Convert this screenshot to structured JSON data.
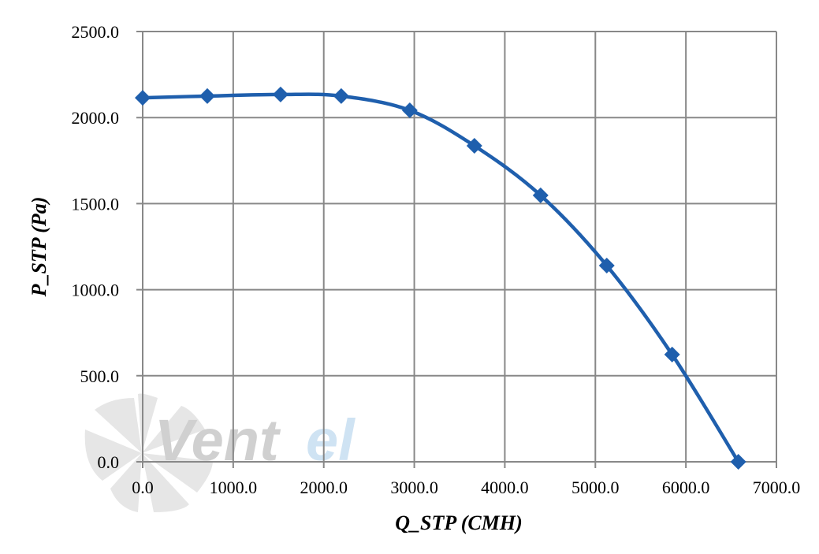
{
  "chart_data": {
    "type": "line",
    "title": "",
    "xlabel": "Q_STP (CMH)",
    "ylabel": "P_STP (Pa)",
    "xlim": [
      0,
      7000
    ],
    "ylim": [
      0,
      2500
    ],
    "x_ticks": [
      "0.0",
      "1000.0",
      "2000.0",
      "3000.0",
      "4000.0",
      "5000.0",
      "6000.0",
      "7000.0"
    ],
    "y_ticks": [
      "0.0",
      "500.0",
      "1000.0",
      "1500.0",
      "2000.0",
      "2500.0"
    ],
    "grid": true,
    "legend": null,
    "series": [
      {
        "name": "P_STP",
        "color": "#1f5fad",
        "marker": "diamond",
        "smooth": true,
        "x": [
          0,
          714,
          1523,
          2193,
          2950,
          3664,
          4395,
          5126,
          5848,
          6579
        ],
        "values": [
          2115,
          2125,
          2134,
          2125,
          2042,
          1836,
          1548,
          1140,
          623,
          0
        ]
      }
    ]
  },
  "watermark": {
    "text_grey": "Vent",
    "text_blue": "el",
    "grey_color": "#d0d0d0",
    "blue_color": "#cfe3f3"
  },
  "colors": {
    "grid": "#888888",
    "series": "#1f5fad"
  }
}
